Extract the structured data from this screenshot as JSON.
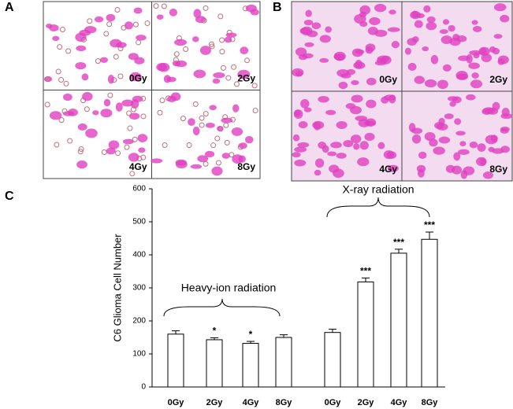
{
  "panel_a": {
    "label": "A",
    "quadrants": [
      "0Gy",
      "2Gy",
      "4Gy",
      "8Gy"
    ]
  },
  "panel_b": {
    "label": "B",
    "quadrants": [
      "0Gy",
      "2Gy",
      "4Gy",
      "8Gy"
    ]
  },
  "panel_c_label": "C",
  "chart_data": {
    "type": "bar",
    "ylabel": "C6 Glioma Cell Number",
    "categories": [
      "0Gy",
      "2Gy",
      "4Gy",
      "8Gy",
      "0Gy",
      "2Gy",
      "4Gy",
      "8Gy"
    ],
    "values": [
      160,
      143,
      132,
      150,
      165,
      318,
      405,
      447
    ],
    "errors": [
      10,
      6,
      6,
      8,
      10,
      12,
      12,
      22
    ],
    "significance": [
      null,
      "*",
      "*",
      null,
      null,
      "***",
      "***",
      "***"
    ],
    "groups": [
      "Heavy-ion radiation",
      "X-ray radiation"
    ],
    "color": "#ffffff",
    "ylim": [
      0,
      600
    ],
    "yticks": [
      0,
      100,
      200,
      300,
      400,
      500,
      600
    ]
  }
}
